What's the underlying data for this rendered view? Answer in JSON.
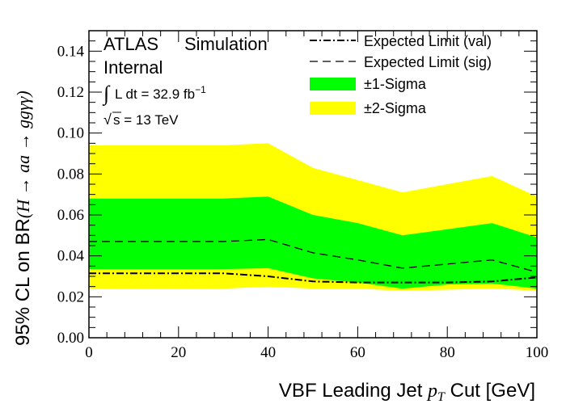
{
  "chart_data": {
    "type": "area",
    "x": [
      0,
      10,
      20,
      30,
      40,
      50,
      60,
      70,
      80,
      90,
      100
    ],
    "xlim": [
      0,
      100
    ],
    "ylim": [
      0,
      0.15
    ],
    "x_ticks": [
      0,
      20,
      40,
      60,
      80,
      100
    ],
    "x_tick_labels": [
      "0",
      "20",
      "40",
      "60",
      "80",
      "100"
    ],
    "y_ticks": [
      0,
      0.02,
      0.04,
      0.06,
      0.08,
      0.1,
      0.12,
      0.14
    ],
    "y_tick_labels": [
      "0.00",
      "0.02",
      "0.04",
      "0.06",
      "0.08",
      "0.10",
      "0.12",
      "0.14"
    ],
    "xlabel": "VBF Leading Jet p_T Cut [GeV]",
    "xlabel_main": "VBF Leading Jet ",
    "xlabel_var": "p",
    "xlabel_sub": "T",
    "xlabel_tail": " Cut [GeV]",
    "ylabel": "95% CL on BR(H → aa → ggγγ)",
    "ylabel_main": "95% CL on BR",
    "ylabel_math": "(H → aa → ggγγ)",
    "annotations": {
      "experiment": "ATLAS",
      "label": "Simulation",
      "status": "Internal",
      "lumi_prefix": "L dt = 32.9 fb",
      "lumi_exp": "−1",
      "energy": "s = 13 TeV"
    },
    "legend_position": "top-right",
    "series": [
      {
        "name": "Expected Limit (val)",
        "style": "dash-dot",
        "color": "#000000",
        "values": [
          0.0315,
          0.0315,
          0.0315,
          0.0315,
          0.03,
          0.0275,
          0.027,
          0.027,
          0.027,
          0.0275,
          0.0295
        ]
      },
      {
        "name": "Expected Limit (sig)",
        "style": "dashed",
        "color": "#000000",
        "values": [
          0.047,
          0.047,
          0.047,
          0.047,
          0.048,
          0.0415,
          0.038,
          0.034,
          0.036,
          0.038,
          0.032
        ]
      }
    ],
    "bands": [
      {
        "name": "±2-Sigma",
        "color": "#ffff00",
        "low": [
          0.024,
          0.024,
          0.024,
          0.024,
          0.025,
          0.024,
          0.024,
          0.023,
          0.0235,
          0.024,
          0.023
        ],
        "high": [
          0.094,
          0.094,
          0.094,
          0.094,
          0.095,
          0.083,
          0.077,
          0.071,
          0.075,
          0.079,
          0.069
        ]
      },
      {
        "name": "±1-Sigma",
        "color": "#00ff00",
        "low": [
          0.0335,
          0.0335,
          0.0335,
          0.0335,
          0.034,
          0.029,
          0.027,
          0.024,
          0.026,
          0.0265,
          0.024
        ]
      },
      {
        "name": "±1-Sigma-high",
        "color": "#00ff00",
        "high": [
          0.068,
          0.068,
          0.068,
          0.068,
          0.069,
          0.06,
          0.056,
          0.05,
          0.053,
          0.056,
          0.049
        ]
      }
    ],
    "legend": [
      {
        "label": "Expected Limit (val)",
        "kind": "dash-dot"
      },
      {
        "label": "Expected Limit (sig)",
        "kind": "dashed"
      },
      {
        "label": "±1-Sigma",
        "kind": "fill",
        "color": "#00ff00"
      },
      {
        "label": "±2-Sigma",
        "kind": "fill",
        "color": "#ffff00"
      }
    ]
  }
}
